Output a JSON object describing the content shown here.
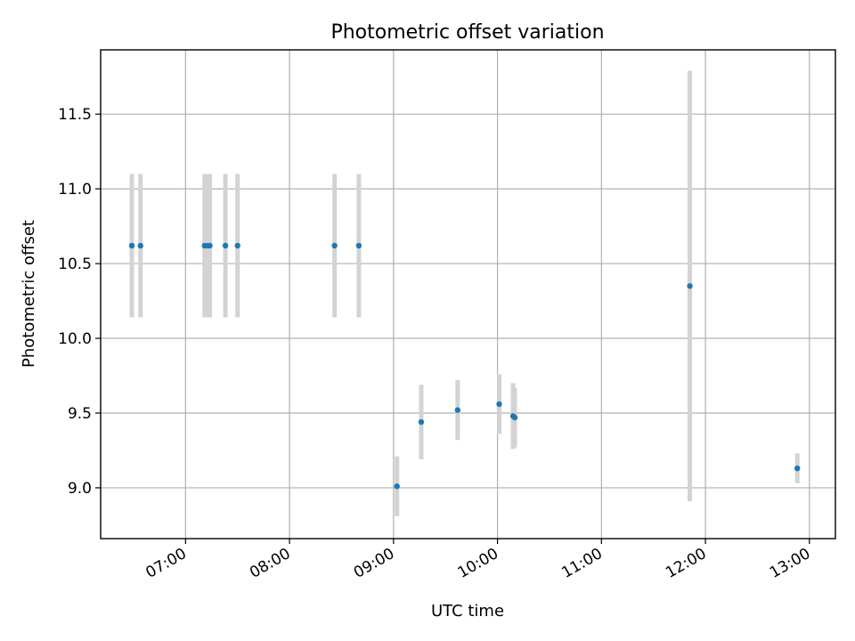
{
  "chart_data": {
    "type": "scatter",
    "title": "Photometric offset variation",
    "xlabel": "UTC time",
    "ylabel": "Photometric offset",
    "grid": true,
    "x_tick_labels": [
      "07:00",
      "08:00",
      "09:00",
      "10:00",
      "11:00",
      "12:00",
      "13:00"
    ],
    "y_tick_labels": [
      "9.0",
      "9.5",
      "10.0",
      "10.5",
      "11.0",
      "11.5"
    ],
    "xlim": [
      "06:11",
      "13:15"
    ],
    "ylim": [
      8.66,
      11.93
    ],
    "colors": {
      "points": "#1f77b4",
      "errorbars": "#d3d3d3"
    },
    "points": [
      {
        "x": "06:29",
        "y": 10.62,
        "err": 0.48
      },
      {
        "x": "06:34",
        "y": 10.62,
        "err": 0.48
      },
      {
        "x": "07:11",
        "y": 10.62,
        "err": 0.48
      },
      {
        "x": "07:13",
        "y": 10.62,
        "err": 0.48
      },
      {
        "x": "07:14",
        "y": 10.62,
        "err": 0.48
      },
      {
        "x": "07:23",
        "y": 10.62,
        "err": 0.48
      },
      {
        "x": "07:30",
        "y": 10.62,
        "err": 0.48
      },
      {
        "x": "08:26",
        "y": 10.62,
        "err": 0.48
      },
      {
        "x": "08:40",
        "y": 10.62,
        "err": 0.48
      },
      {
        "x": "09:02",
        "y": 9.01,
        "err": 0.2
      },
      {
        "x": "09:16",
        "y": 9.44,
        "err": 0.25
      },
      {
        "x": "09:37",
        "y": 9.52,
        "err": 0.2
      },
      {
        "x": "10:01",
        "y": 9.56,
        "err": 0.2
      },
      {
        "x": "10:09",
        "y": 9.48,
        "err": 0.22
      },
      {
        "x": "10:10",
        "y": 9.47,
        "err": 0.2
      },
      {
        "x": "11:51",
        "y": 10.35,
        "err": 1.44
      },
      {
        "x": "12:53",
        "y": 9.13,
        "err": 0.1
      }
    ]
  }
}
